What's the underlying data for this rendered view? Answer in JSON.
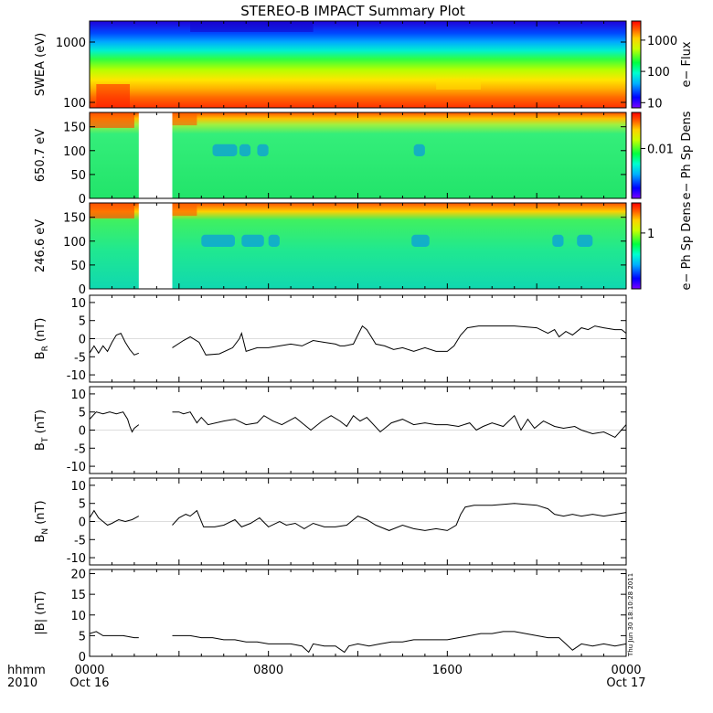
{
  "title": "STEREO-B IMPACT Summary Plot",
  "footer": {
    "hhmm": "hhmm",
    "year": "2010",
    "x_labels": [
      {
        "t": 0,
        "line1": "0000",
        "line2": "Oct 16"
      },
      {
        "t": 8,
        "line1": "0800",
        "line2": ""
      },
      {
        "t": 16,
        "line1": "1600",
        "line2": ""
      },
      {
        "t": 24,
        "line1": "0000",
        "line2": "Oct 17"
      }
    ],
    "timestamp": "Thu Jun 30 18:10:28 2011"
  },
  "chart_data": [
    {
      "type": "heatmap",
      "ylabel": "SWEA (eV)",
      "ylog": true,
      "yticks": [
        "100",
        "1000"
      ],
      "colorbar_label": "e− Flux",
      "colorbar_ticks": [
        "10",
        "100",
        "1000"
      ],
      "xlim": [
        0,
        24
      ],
      "x_unit": "hours"
    },
    {
      "type": "heatmap",
      "ylabel": "650.7 eV",
      "ylim": [
        0,
        180
      ],
      "yticks": [
        "0",
        "50",
        "100",
        "150"
      ],
      "colorbar_label": "e− Ph Sp Dens",
      "colorbar_ticks": [
        "0.01"
      ],
      "data_gap_hours": [
        2.2,
        3.7
      ],
      "xlim": [
        0,
        24
      ]
    },
    {
      "type": "heatmap",
      "ylabel": "246.6 eV",
      "ylim": [
        0,
        180
      ],
      "yticks": [
        "0",
        "50",
        "100",
        "150"
      ],
      "colorbar_label": "e− Ph Sp Dens",
      "colorbar_ticks": [
        "1"
      ],
      "data_gap_hours": [
        2.2,
        3.7
      ],
      "xlim": [
        0,
        24
      ]
    },
    {
      "type": "line",
      "ylabel": "B",
      "ylabel_sub": "R",
      "ylabel_unit": "(nT)",
      "ylim": [
        -12,
        12
      ],
      "yticks": [
        "-10",
        "-5",
        "0",
        "5",
        "10"
      ],
      "xlim": [
        0,
        24
      ],
      "x": [
        0.0,
        0.2,
        0.4,
        0.6,
        0.8,
        1.0,
        1.2,
        1.4,
        1.6,
        1.8,
        2.0,
        2.2,
        3.7,
        4.2,
        4.5,
        4.9,
        5.2,
        5.8,
        6.4,
        6.7,
        6.8,
        7.0,
        7.5,
        8.0,
        8.5,
        9.0,
        9.5,
        10.0,
        10.5,
        11.0,
        11.2,
        11.4,
        11.8,
        12.0,
        12.2,
        12.4,
        12.8,
        13.2,
        13.6,
        14.0,
        14.5,
        15.0,
        15.5,
        16.0,
        16.3,
        16.6,
        16.9,
        17.4,
        18.0,
        19.0,
        20.0,
        20.5,
        20.8,
        21.0,
        21.3,
        21.6,
        22.0,
        22.3,
        22.6,
        23.0,
        23.5,
        23.8,
        24.0
      ],
      "values": [
        -4,
        -2,
        -4,
        -2,
        -3.5,
        -1,
        1,
        1.5,
        -1,
        -3,
        -4.5,
        -4,
        -2.5,
        -0.5,
        0.5,
        -1,
        -4.5,
        -4.2,
        -2.5,
        0,
        1.5,
        -3.5,
        -2.5,
        -2.5,
        -2,
        -1.5,
        -2,
        -0.5,
        -1,
        -1.5,
        -2,
        -2,
        -1.5,
        1,
        3.5,
        2.5,
        -1.5,
        -2,
        -3,
        -2.5,
        -3.5,
        -2.5,
        -3.5,
        -3.5,
        -2,
        1,
        3,
        3.5,
        3.5,
        3.5,
        3,
        1.5,
        2.5,
        0.5,
        2,
        1,
        3,
        2.5,
        3.5,
        3,
        2.5,
        2.5,
        1.5
      ]
    },
    {
      "type": "line",
      "ylabel": "B",
      "ylabel_sub": "T",
      "ylabel_unit": "(nT)",
      "ylim": [
        -12,
        12
      ],
      "yticks": [
        "-10",
        "-5",
        "0",
        "5",
        "10"
      ],
      "xlim": [
        0,
        24
      ],
      "x": [
        0.0,
        0.3,
        0.6,
        0.9,
        1.2,
        1.5,
        1.7,
        1.8,
        1.9,
        2.0,
        2.2,
        3.7,
        4.0,
        4.2,
        4.5,
        4.8,
        5.0,
        5.3,
        6.0,
        6.5,
        7.0,
        7.5,
        7.8,
        8.2,
        8.6,
        9.2,
        9.6,
        9.9,
        10.4,
        10.8,
        11.2,
        11.5,
        11.8,
        12.1,
        12.4,
        13.0,
        13.5,
        14.0,
        14.5,
        15.0,
        15.5,
        16.0,
        16.5,
        17.0,
        17.3,
        17.6,
        18.0,
        18.5,
        19.0,
        19.3,
        19.6,
        19.9,
        20.3,
        20.8,
        21.2,
        21.7,
        22.0,
        22.5,
        23.0,
        23.5,
        24.0
      ],
      "values": [
        3,
        5,
        4.5,
        5,
        4.5,
        5,
        3,
        1,
        -0.5,
        0.5,
        1.5,
        5,
        5,
        4.5,
        5,
        2,
        3.5,
        1.5,
        2.5,
        3,
        1.5,
        2,
        4,
        2.5,
        1.5,
        3.5,
        1.5,
        0,
        2.5,
        4,
        2.5,
        1,
        4,
        2.5,
        3.5,
        -0.5,
        2,
        3,
        1.5,
        2,
        1.5,
        1.5,
        1,
        2,
        0,
        1,
        2,
        1,
        4,
        0,
        3,
        0.5,
        2.5,
        1,
        0.5,
        1,
        0,
        -1,
        -0.5,
        -2,
        1.5
      ]
    },
    {
      "type": "line",
      "ylabel": "B",
      "ylabel_sub": "N",
      "ylabel_unit": "(nT)",
      "ylim": [
        -12,
        12
      ],
      "yticks": [
        "-10",
        "-5",
        "0",
        "5",
        "10"
      ],
      "xlim": [
        0,
        24
      ],
      "x": [
        0.0,
        0.2,
        0.4,
        0.6,
        0.8,
        1.0,
        1.3,
        1.6,
        1.9,
        2.2,
        3.7,
        4.0,
        4.3,
        4.5,
        4.8,
        5.1,
        5.6,
        6.0,
        6.5,
        6.8,
        7.2,
        7.6,
        8.0,
        8.5,
        8.8,
        9.2,
        9.6,
        10.0,
        10.5,
        11.0,
        11.5,
        12.0,
        12.4,
        12.8,
        13.4,
        14.0,
        14.5,
        15.0,
        15.5,
        16.0,
        16.4,
        16.6,
        16.8,
        17.2,
        18.0,
        19.0,
        20.0,
        20.5,
        20.8,
        21.2,
        21.6,
        22.0,
        22.5,
        23.0,
        23.5,
        24.0
      ],
      "values": [
        1,
        3,
        1,
        0,
        -1,
        -0.5,
        0.5,
        0,
        0.5,
        1.5,
        -1,
        1,
        2,
        1.5,
        3,
        -1.5,
        -1.5,
        -1,
        0.5,
        -1.5,
        -0.5,
        1,
        -1.5,
        0,
        -1,
        -0.5,
        -2,
        -0.5,
        -1.5,
        -1.5,
        -1,
        1.5,
        0.5,
        -1,
        -2.5,
        -1,
        -2,
        -2.5,
        -2,
        -2.5,
        -1,
        2,
        4,
        4.5,
        4.5,
        5,
        4.5,
        3.5,
        2,
        1.5,
        2,
        1.5,
        2,
        1.5,
        2,
        2.5
      ]
    },
    {
      "type": "line",
      "ylabel": "|B|",
      "ylabel_sub": "",
      "ylabel_unit": "(nT)",
      "ylim": [
        0,
        21
      ],
      "yticks": [
        "0",
        "5",
        "10",
        "15",
        "20"
      ],
      "xlim": [
        0,
        24
      ],
      "x": [
        0.0,
        0.3,
        0.6,
        1.0,
        1.5,
        2.0,
        2.2,
        3.7,
        4.5,
        5.0,
        5.5,
        6.0,
        6.5,
        7.0,
        7.5,
        8.0,
        8.5,
        9.0,
        9.5,
        9.8,
        10.0,
        10.5,
        11.0,
        11.4,
        11.6,
        12.0,
        12.5,
        13.0,
        13.5,
        14.0,
        14.5,
        15.0,
        15.5,
        16.0,
        16.5,
        17.0,
        17.5,
        18.0,
        18.5,
        19.0,
        19.5,
        20.0,
        20.5,
        21.0,
        21.3,
        21.6,
        22.0,
        22.5,
        23.0,
        23.5,
        24.0
      ],
      "values": [
        5.5,
        6,
        5,
        5,
        5,
        4.5,
        4.5,
        5,
        5,
        4.5,
        4.5,
        4,
        4,
        3.5,
        3.5,
        3,
        3,
        3,
        2.5,
        1,
        3,
        2.5,
        2.5,
        1,
        2.5,
        3,
        2.5,
        3,
        3.5,
        3.5,
        4,
        4,
        4,
        4,
        4.5,
        5,
        5.5,
        5.5,
        6,
        6,
        5.5,
        5,
        4.5,
        4.5,
        3,
        1.5,
        3,
        2.5,
        3,
        2.5,
        3
      ]
    }
  ]
}
